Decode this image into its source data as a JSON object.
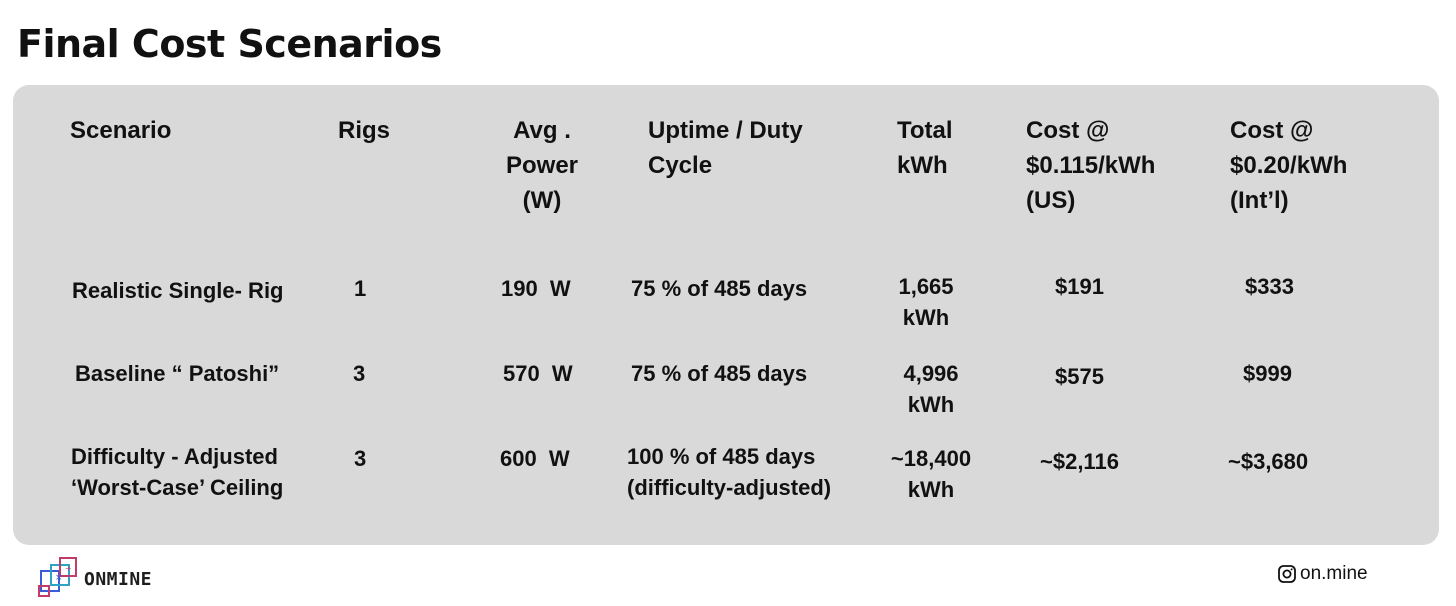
{
  "title": "Final Cost Scenarios",
  "table": {
    "headers": [
      [
        "Scenario"
      ],
      [
        "Rigs"
      ],
      [
        "Avg .",
        "Power",
        "(W)"
      ],
      [
        "Uptime / Duty",
        "Cycle"
      ],
      [
        "Total",
        "kWh"
      ],
      [
        "Cost @",
        "$0.115/kWh",
        "(US)"
      ],
      [
        "Cost @",
        "$0.20/kWh",
        "(Int’l)"
      ]
    ],
    "rows": [
      {
        "scenario": [
          "Realistic Single- Rig"
        ],
        "rigs": "1",
        "power": "190  W",
        "uptime": [
          "75 % of 485 days"
        ],
        "kwh": [
          "1,665",
          "kWh"
        ],
        "cost_us": "$191",
        "cost_intl": "$333"
      },
      {
        "scenario": [
          "Baseline “ Patoshi”"
        ],
        "rigs": "3",
        "power": "570  W",
        "uptime": [
          "75 % of 485 days"
        ],
        "kwh": [
          "4,996",
          "kWh"
        ],
        "cost_us": "$575",
        "cost_intl": "$999"
      },
      {
        "scenario": [
          "Difficulty - Adjusted",
          "‘Worst-Case’ Ceiling"
        ],
        "rigs": "3",
        "power": "600  W",
        "uptime": [
          "100 % of 485 days",
          "(difficulty-adjusted)"
        ],
        "kwh": [
          "~18,400",
          "kWh"
        ],
        "cost_us": "~$2,116",
        "cost_intl": "~$3,680"
      }
    ]
  },
  "footer": {
    "brand": "ONMINE",
    "handle": "on.mine",
    "icons": [
      "onmine-logo-icon",
      "instagram-icon"
    ]
  }
}
